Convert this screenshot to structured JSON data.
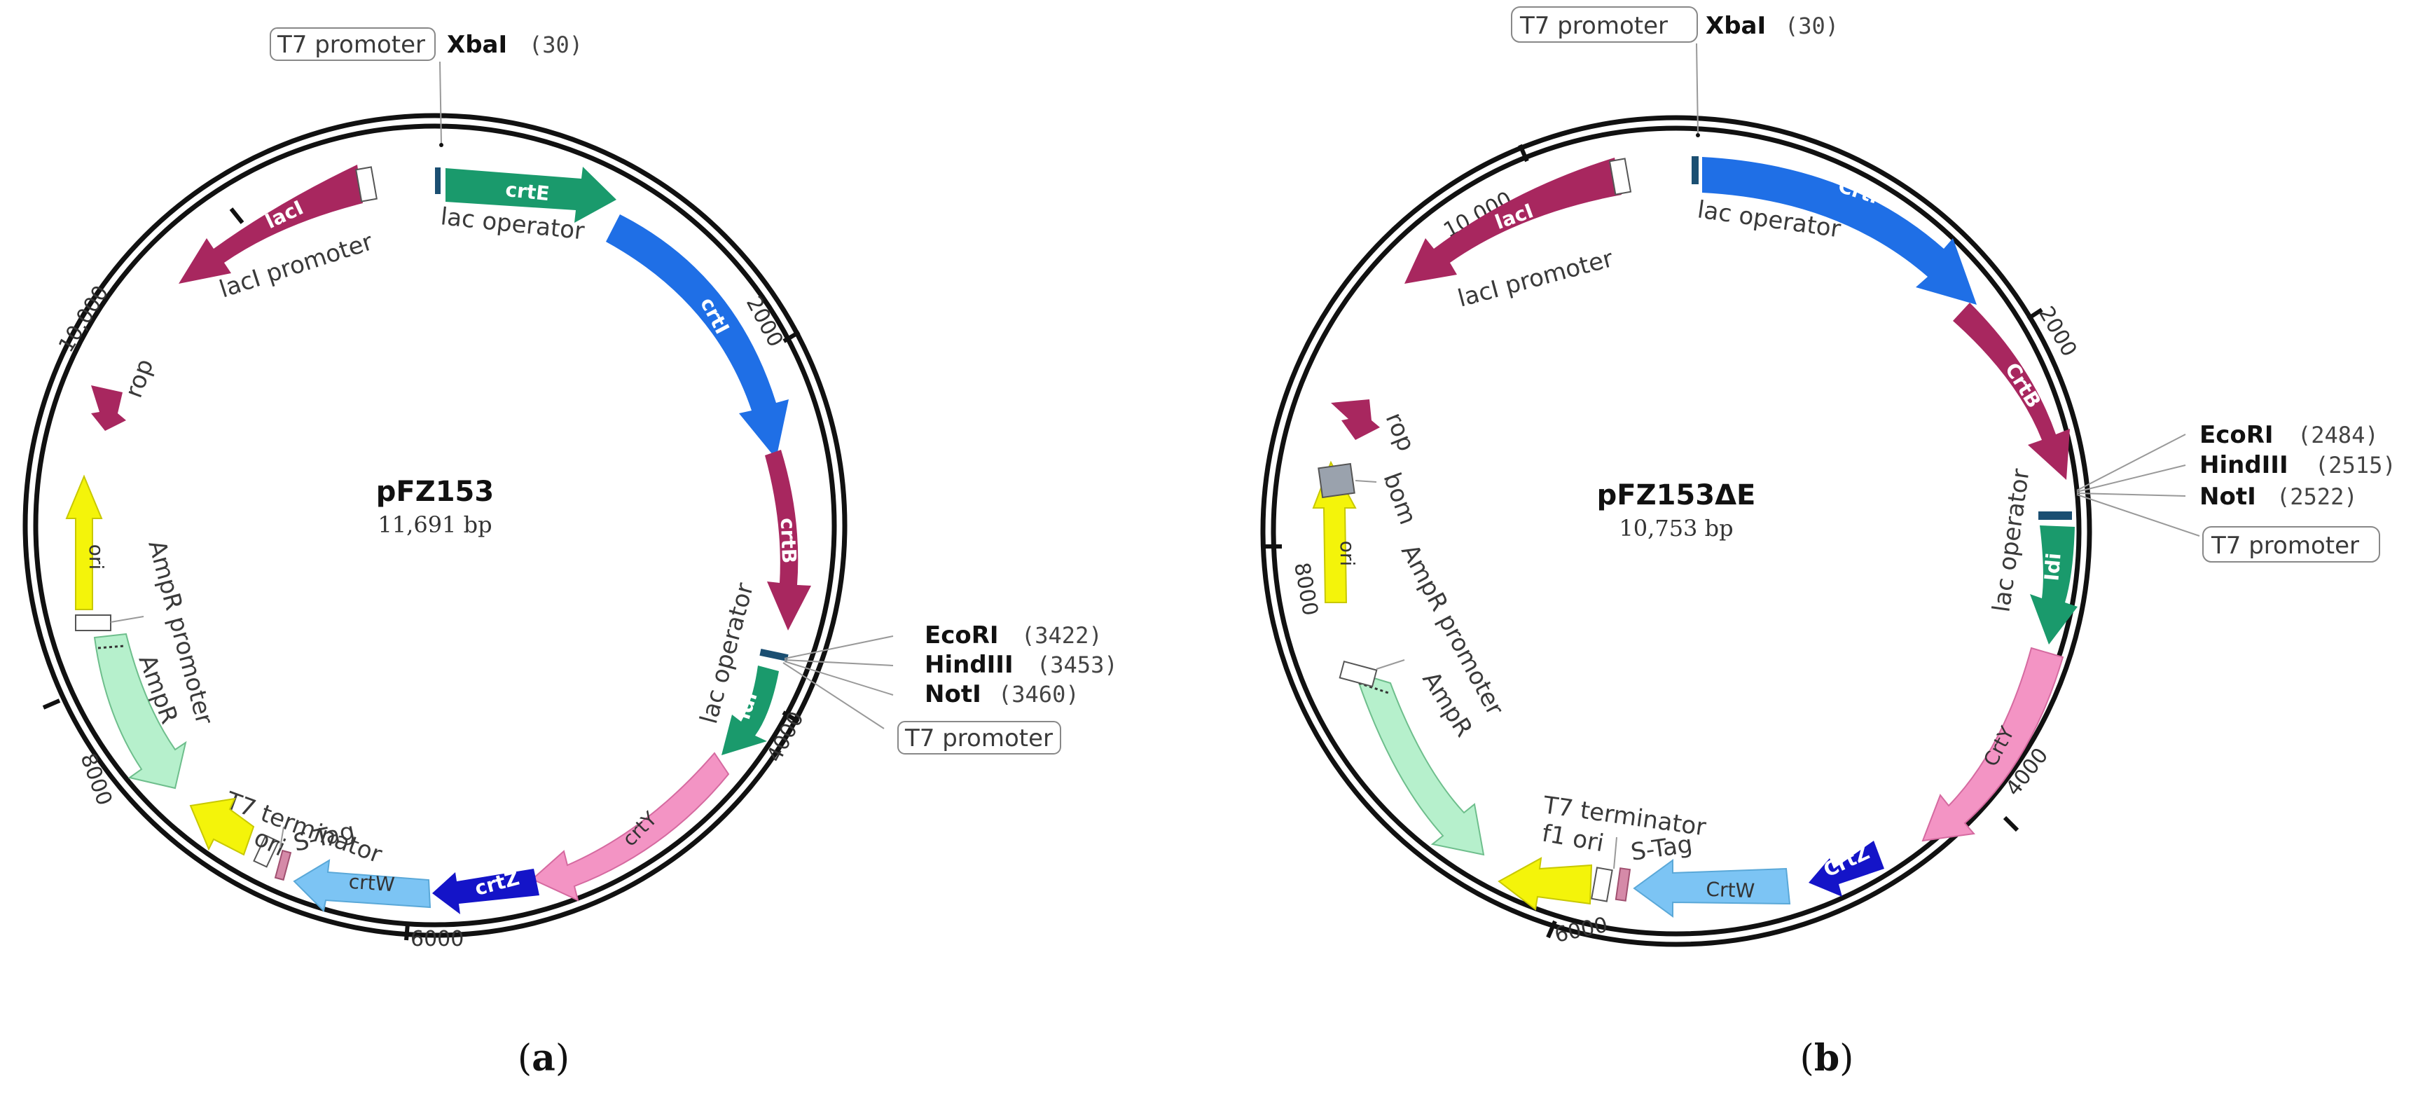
{
  "panels": [
    {
      "id": "a",
      "name": "pFZ153",
      "size": "11,691 bp",
      "caption": "a",
      "tick_labels": [
        "10,000",
        "2000",
        "4000",
        "6000",
        "8000"
      ],
      "sites": [
        {
          "name": "XbaI",
          "pos": "(30)"
        },
        {
          "name": "EcoRI",
          "pos": "(3422)"
        },
        {
          "name": "HindIII",
          "pos": "(3453)"
        },
        {
          "name": "NotI",
          "pos": "(3460)"
        }
      ],
      "boxed_labels": [
        "T7 promoter",
        "T7 promoter"
      ],
      "genes": [
        {
          "label": "crtE",
          "color": "#1a9a6c"
        },
        {
          "label": "crtI",
          "color": "#1f6fe6"
        },
        {
          "label": "crtB",
          "color": "#a8275f"
        },
        {
          "label": "idi",
          "color": "#1a9a6c"
        },
        {
          "label": "crtY",
          "color": "#f394c4"
        },
        {
          "label": "crtZ",
          "color": "#1414c8"
        },
        {
          "label": "crtW",
          "color": "#7cc4f4"
        },
        {
          "label": "ori",
          "color": "#f4f40a"
        },
        {
          "label": "ori",
          "color": "#f4f40a"
        },
        {
          "label": "lacI",
          "color": "#a8275f"
        },
        {
          "label": "rop",
          "color": "#a8275f"
        },
        {
          "label": "AmpR",
          "color": "#b6f0cc"
        }
      ],
      "features": [
        "lac operator",
        "lacI promoter",
        "lac operator",
        "AmpR promoter",
        "AmpR",
        "T7 terminator",
        "f1 ori",
        "S-Tag",
        "rop"
      ]
    },
    {
      "id": "b",
      "name": "pFZ153ΔE",
      "size": "10,753 bp",
      "caption": "b",
      "tick_labels": [
        "10,000",
        "2000",
        "4000",
        "6000",
        "8000"
      ],
      "sites": [
        {
          "name": "XbaI",
          "pos": "(30)"
        },
        {
          "name": "EcoRI",
          "pos": "(2484)"
        },
        {
          "name": "HindIII",
          "pos": "(2515)"
        },
        {
          "name": "NotI",
          "pos": "(2522)"
        }
      ],
      "boxed_labels": [
        "T7 promoter",
        "T7 promoter"
      ],
      "genes": [
        {
          "label": "CrtI",
          "color": "#1f6fe6"
        },
        {
          "label": "CrtB",
          "color": "#a8275f"
        },
        {
          "label": "Idi",
          "color": "#1a9a6c"
        },
        {
          "label": "CrtY",
          "color": "#f394c4"
        },
        {
          "label": "CrtZ",
          "color": "#1414c8"
        },
        {
          "label": "CrtW",
          "color": "#7cc4f4"
        },
        {
          "label": "ori",
          "color": "#f4f40a"
        },
        {
          "label": "ori",
          "color": "#f4f40a"
        },
        {
          "label": "lacI",
          "color": "#a8275f"
        },
        {
          "label": "rop",
          "color": "#a8275f"
        },
        {
          "label": "AmpR",
          "color": "#b6f0cc"
        }
      ],
      "features": [
        "lac operator",
        "lacI promoter",
        "lac operator",
        "AmpR promoter",
        "AmpR",
        "T7 terminator",
        "f1 ori",
        "S-Tag",
        "rop",
        "bom"
      ]
    }
  ]
}
